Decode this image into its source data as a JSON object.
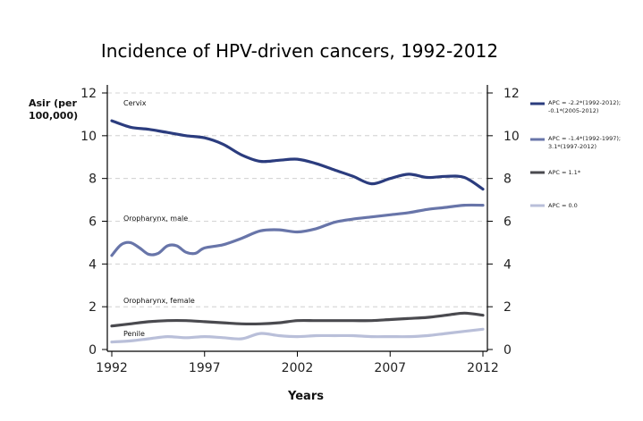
{
  "chart_data": {
    "type": "line",
    "title": "Incidence of HPV-driven cancers, 1992-2012",
    "xlabel": "Years",
    "ylabel": [
      "Asir (per",
      "100,000)"
    ],
    "xlim": [
      1992,
      2012
    ],
    "ylim": [
      0,
      12
    ],
    "x_ticks": [
      "1992",
      "1997",
      "2002",
      "2007",
      "2012"
    ],
    "y_ticks": [
      "0",
      "2",
      "4",
      "6",
      "8",
      "10",
      "12"
    ],
    "grid": "horizontal-dashed",
    "legend_position": "right",
    "series": [
      {
        "name": "APC = -2.2*(1992-2012); -0.1*(2005-2012)",
        "legend_lines": [
          "APC = -2.2*(1992-2012);",
          "-0.1*(2005-2012)"
        ],
        "annotation": "Cervix",
        "color": "#2b3c7e",
        "x": [
          1992,
          1993,
          1994,
          1995,
          1996,
          1997,
          1998,
          1999,
          2000,
          2001,
          2002,
          2003,
          2004,
          2005,
          2006,
          2007,
          2008,
          2009,
          2010,
          2011,
          2012
        ],
        "values": [
          10.7,
          10.4,
          10.3,
          10.15,
          10.0,
          9.9,
          9.6,
          9.1,
          8.8,
          8.85,
          8.9,
          8.7,
          8.4,
          8.1,
          7.75,
          8.0,
          8.2,
          8.05,
          8.1,
          8.05,
          7.5
        ]
      },
      {
        "name": "APC = -1.4*(1992-1997); 3.1*(1997-2012)",
        "legend_lines": [
          "APC = -1.4*(1992-1997);",
          "3.1*(1997-2012)"
        ],
        "annotation": "Oropharynx, male",
        "color": "#6875a9",
        "x": [
          1992,
          1992.5,
          1993,
          1993.5,
          1994,
          1994.5,
          1995,
          1995.5,
          1996,
          1996.5,
          1997,
          1998,
          1999,
          2000,
          2001,
          2002,
          2003,
          2004,
          2005,
          2006,
          2007,
          2008,
          2009,
          2010,
          2011,
          2012
        ],
        "values": [
          4.4,
          4.9,
          5.0,
          4.75,
          4.45,
          4.5,
          4.85,
          4.85,
          4.55,
          4.5,
          4.75,
          4.9,
          5.2,
          5.55,
          5.6,
          5.5,
          5.65,
          5.95,
          6.1,
          6.2,
          6.3,
          6.4,
          6.55,
          6.65,
          6.75,
          6.75
        ]
      },
      {
        "name": "APC = 1.1*",
        "legend_lines": [
          "APC = 1.1*"
        ],
        "annotation": "Oropharynx, female",
        "color": "#4a4a4f",
        "x": [
          1992,
          1993,
          1994,
          1995,
          1996,
          1997,
          1998,
          1999,
          2000,
          2001,
          2002,
          2003,
          2004,
          2005,
          2006,
          2007,
          2008,
          2009,
          2010,
          2011,
          2012
        ],
        "values": [
          1.1,
          1.2,
          1.3,
          1.35,
          1.35,
          1.3,
          1.25,
          1.2,
          1.2,
          1.25,
          1.35,
          1.35,
          1.35,
          1.35,
          1.35,
          1.4,
          1.45,
          1.5,
          1.6,
          1.7,
          1.6
        ]
      },
      {
        "name": "APC = 0.0",
        "legend_lines": [
          "APC = 0.0"
        ],
        "annotation": "Penile",
        "color": "#b9bfd9",
        "x": [
          1992,
          1993,
          1994,
          1995,
          1996,
          1997,
          1998,
          1999,
          2000,
          2001,
          2002,
          2003,
          2004,
          2005,
          2006,
          2007,
          2008,
          2009,
          2010,
          2011,
          2012
        ],
        "values": [
          0.35,
          0.4,
          0.5,
          0.6,
          0.55,
          0.6,
          0.55,
          0.5,
          0.75,
          0.65,
          0.6,
          0.65,
          0.65,
          0.65,
          0.6,
          0.6,
          0.6,
          0.65,
          0.75,
          0.85,
          0.95
        ]
      }
    ]
  }
}
